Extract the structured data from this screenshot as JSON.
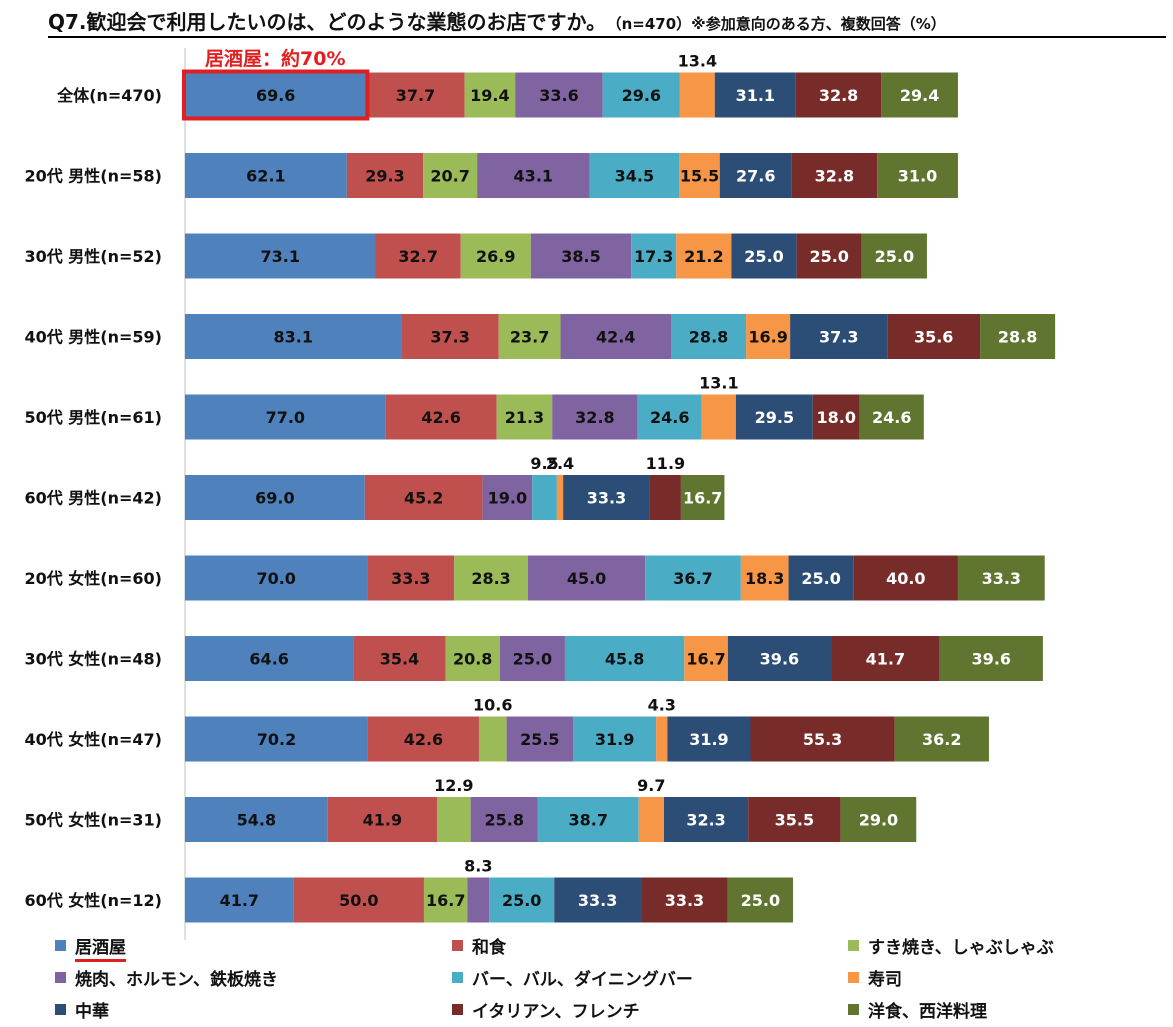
{
  "title": {
    "main": "Q7.歓迎会で利用したいのは、どのような業態のお店ですか。",
    "sub": "（n=470）※参加意向のある方、複数回答（%）"
  },
  "callout": "居酒屋：約70%",
  "colors": {
    "居酒屋": "#4F81BD",
    "和食": "#C0504D",
    "すき焼き、しゃぶしゃぶ": "#9BBB59",
    "焼肉、ホルモン、鉄板焼き": "#8064A2",
    "バー、バル、ダイニングバー": "#4BACC6",
    "寿司": "#F79646",
    "中華": "#2C4D75",
    "イタリアン、フレンチ": "#772C2A",
    "洋食、西洋料理": "#5F7530",
    "highlight": "#E02020",
    "axis": "#BFBFBF"
  },
  "chart_data": {
    "type": "bar",
    "orientation": "horizontal",
    "stacked": true,
    "unit": "%",
    "categories": [
      "全体(n=470)",
      "20代 男性(n=58)",
      "30代 男性(n=52)",
      "40代 男性(n=59)",
      "50代 男性(n=61)",
      "60代 男性(n=42)",
      "20代 女性(n=60)",
      "30代 女性(n=48)",
      "40代 女性(n=47)",
      "50代 女性(n=31)",
      "60代 女性(n=12)"
    ],
    "series": [
      {
        "name": "居酒屋",
        "values": [
          69.6,
          62.1,
          73.1,
          83.1,
          77.0,
          69.0,
          70.0,
          64.6,
          70.2,
          54.8,
          41.7
        ]
      },
      {
        "name": "和食",
        "values": [
          37.7,
          29.3,
          32.7,
          37.3,
          42.6,
          45.2,
          33.3,
          35.4,
          42.6,
          41.9,
          50.0
        ]
      },
      {
        "name": "すき焼き、しゃぶしゃぶ",
        "values": [
          19.4,
          20.7,
          26.9,
          23.7,
          21.3,
          0.0,
          28.3,
          20.8,
          10.6,
          12.9,
          16.7
        ]
      },
      {
        "name": "焼肉、ホルモン、鉄板焼き",
        "values": [
          33.6,
          43.1,
          38.5,
          42.4,
          32.8,
          19.0,
          45.0,
          25.0,
          25.5,
          25.8,
          8.3
        ]
      },
      {
        "name": "バー、バル、ダイニングバー",
        "values": [
          29.6,
          34.5,
          17.3,
          28.8,
          24.6,
          9.5,
          36.7,
          45.8,
          31.9,
          38.7,
          25.0
        ]
      },
      {
        "name": "寿司",
        "values": [
          13.4,
          15.5,
          21.2,
          16.9,
          13.1,
          2.4,
          18.3,
          16.7,
          4.3,
          9.7,
          0.0
        ]
      },
      {
        "name": "中華",
        "values": [
          31.1,
          27.6,
          25.0,
          37.3,
          29.5,
          33.3,
          25.0,
          39.6,
          31.9,
          32.3,
          33.3
        ]
      },
      {
        "name": "イタリアン、フレンチ",
        "values": [
          32.8,
          32.8,
          25.0,
          35.6,
          18.0,
          11.9,
          40.0,
          41.7,
          55.3,
          35.5,
          33.3
        ]
      },
      {
        "name": "洋食、西洋料理",
        "values": [
          29.4,
          31.0,
          25.0,
          28.8,
          24.6,
          16.7,
          33.3,
          39.6,
          36.2,
          29.0,
          25.0
        ]
      }
    ],
    "label_format": "0.0",
    "hidden_labels": "zero values",
    "highlight": {
      "category": "全体(n=470)",
      "series": "居酒屋"
    },
    "legend_position": "bottom",
    "grid": false
  }
}
